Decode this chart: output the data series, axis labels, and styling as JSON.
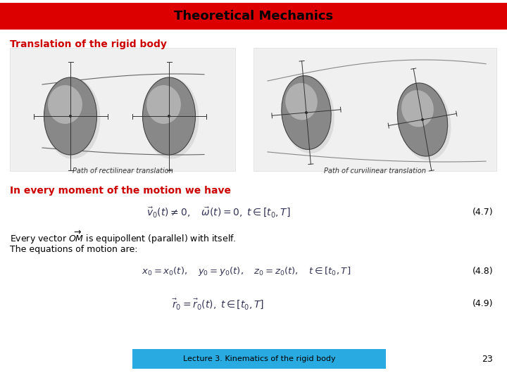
{
  "title": "Theoretical Mechanics",
  "title_bg_color": "#DD0000",
  "title_text_color": "#000000",
  "title_fontsize": 13,
  "subtitle": "Translation of the rigid body",
  "subtitle_fontsize": 10,
  "subtitle_color": "#CC0000",
  "text_red": "In every moment of the motion we have",
  "text_red_color": "#CC0000",
  "text_red_fontsize": 10,
  "eq1_label": "(4.7)",
  "eq2_label": "(4.8)",
  "eq3_label": "(4.9)",
  "eq_label_fontsize": 9,
  "body_text1": "Every vector $\\overrightarrow{OM}$ is equipollent (parallel) with itself.",
  "body_text2": "The equations of motion are:",
  "body_fontsize": 9,
  "footer_text": "Lecture 3. Kinematics of the rigid body",
  "footer_bg_color": "#29ABE2",
  "footer_text_color": "#000000",
  "footer_fontsize": 8,
  "page_number": "23",
  "page_fontsize": 9,
  "bg_color": "#FFFFFF",
  "eq1": "$\\vec{v}_0(t) \\neq 0, \\quad \\vec{\\omega}(t) = 0, \\; t \\in [t_0, T]$",
  "eq2": "$x_0 = x_0(t), \\quad y_0 = y_0(t), \\quad z_0 = z_0(t), \\quad t \\in [t_0, T]$",
  "eq3": "$\\vec{r}_0 = \\vec{r}_0(t), \\; t \\in [t_0, T]$",
  "caption_left": "Path of rectilinear translation",
  "caption_right": "Path of curvilinear translation"
}
